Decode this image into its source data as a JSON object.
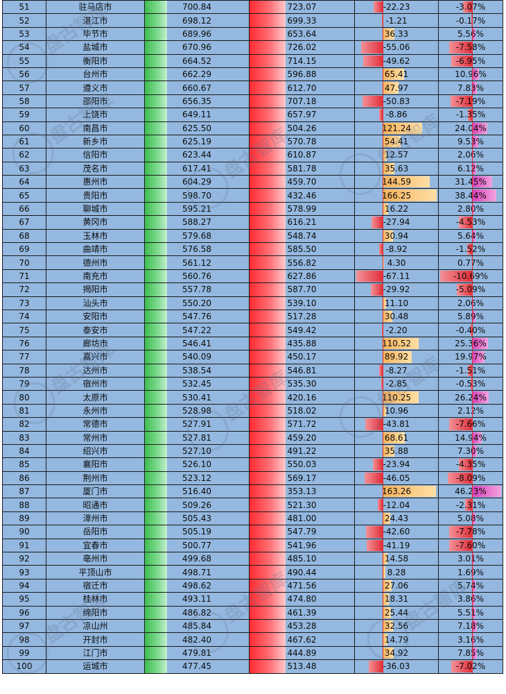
{
  "watermark": "盘古智库",
  "colors": {
    "cell_bg": "#94b8df",
    "gdp_bar": "#3fbe53",
    "prev_bar": "#ff2a32",
    "increase_positive": "#f6b15a",
    "growth_positive": "#d83fb6",
    "negative": "#e2303a"
  },
  "rows": [
    {
      "rank": "51",
      "city": "驻马店市",
      "gdp": "700.84",
      "prev": "723.07",
      "inc": "-22.23",
      "pct": "-3.07%"
    },
    {
      "rank": "52",
      "city": "湛江市",
      "gdp": "698.12",
      "prev": "699.33",
      "inc": "-1.21",
      "pct": "-0.17%"
    },
    {
      "rank": "53",
      "city": "毕节市",
      "gdp": "689.96",
      "prev": "653.64",
      "inc": "36.33",
      "pct": "5.56%"
    },
    {
      "rank": "54",
      "city": "盐城市",
      "gdp": "670.96",
      "prev": "726.02",
      "inc": "-55.06",
      "pct": "-7.58%"
    },
    {
      "rank": "55",
      "city": "衡阳市",
      "gdp": "664.52",
      "prev": "714.15",
      "inc": "-49.62",
      "pct": "-6.95%"
    },
    {
      "rank": "56",
      "city": "台州市",
      "gdp": "662.29",
      "prev": "596.88",
      "inc": "65.41",
      "pct": "10.96%"
    },
    {
      "rank": "57",
      "city": "遵义市",
      "gdp": "660.67",
      "prev": "612.70",
      "inc": "47.97",
      "pct": "7.83%"
    },
    {
      "rank": "58",
      "city": "邵阳市",
      "gdp": "656.35",
      "prev": "707.18",
      "inc": "-50.83",
      "pct": "-7.19%"
    },
    {
      "rank": "59",
      "city": "上饶市",
      "gdp": "649.11",
      "prev": "657.97",
      "inc": "-8.86",
      "pct": "-1.35%"
    },
    {
      "rank": "60",
      "city": "南昌市",
      "gdp": "625.50",
      "prev": "504.26",
      "inc": "121.24",
      "pct": "24.04%"
    },
    {
      "rank": "61",
      "city": "新乡市",
      "gdp": "625.19",
      "prev": "570.78",
      "inc": "54.41",
      "pct": "9.53%"
    },
    {
      "rank": "62",
      "city": "信阳市",
      "gdp": "623.44",
      "prev": "610.87",
      "inc": "12.57",
      "pct": "2.06%"
    },
    {
      "rank": "63",
      "city": "茂名市",
      "gdp": "617.41",
      "prev": "581.78",
      "inc": "35.63",
      "pct": "6.12%"
    },
    {
      "rank": "64",
      "city": "惠州市",
      "gdp": "604.29",
      "prev": "459.70",
      "inc": "144.59",
      "pct": "31.45%"
    },
    {
      "rank": "65",
      "city": "贵阳市",
      "gdp": "598.70",
      "prev": "432.46",
      "inc": "166.25",
      "pct": "38.44%"
    },
    {
      "rank": "66",
      "city": "聊城市",
      "gdp": "595.21",
      "prev": "578.99",
      "inc": "16.22",
      "pct": "2.80%"
    },
    {
      "rank": "67",
      "city": "黄冈市",
      "gdp": "588.27",
      "prev": "616.21",
      "inc": "-27.94",
      "pct": "-4.53%"
    },
    {
      "rank": "68",
      "city": "玉林市",
      "gdp": "579.68",
      "prev": "548.74",
      "inc": "30.94",
      "pct": "5.64%"
    },
    {
      "rank": "69",
      "city": "曲靖市",
      "gdp": "576.58",
      "prev": "585.50",
      "inc": "-8.92",
      "pct": "-1.52%"
    },
    {
      "rank": "70",
      "city": "德州市",
      "gdp": "561.12",
      "prev": "556.82",
      "inc": "4.30",
      "pct": "0.77%"
    },
    {
      "rank": "71",
      "city": "南充市",
      "gdp": "560.76",
      "prev": "627.86",
      "inc": "-67.11",
      "pct": "-10.69%"
    },
    {
      "rank": "72",
      "city": "揭阳市",
      "gdp": "557.78",
      "prev": "587.70",
      "inc": "-29.92",
      "pct": "-5.09%"
    },
    {
      "rank": "73",
      "city": "汕头市",
      "gdp": "550.20",
      "prev": "539.10",
      "inc": "11.10",
      "pct": "2.06%"
    },
    {
      "rank": "74",
      "city": "安阳市",
      "gdp": "547.76",
      "prev": "517.28",
      "inc": "30.48",
      "pct": "5.89%"
    },
    {
      "rank": "75",
      "city": "泰安市",
      "gdp": "547.22",
      "prev": "549.42",
      "inc": "-2.20",
      "pct": "-0.40%"
    },
    {
      "rank": "76",
      "city": "廊坊市",
      "gdp": "546.41",
      "prev": "435.88",
      "inc": "110.52",
      "pct": "25.36%"
    },
    {
      "rank": "77",
      "city": "嘉兴市",
      "gdp": "540.09",
      "prev": "450.17",
      "inc": "89.92",
      "pct": "19.97%"
    },
    {
      "rank": "78",
      "city": "达州市",
      "gdp": "538.54",
      "prev": "546.81",
      "inc": "-8.27",
      "pct": "-1.51%"
    },
    {
      "rank": "79",
      "city": "宿州市",
      "gdp": "532.45",
      "prev": "535.30",
      "inc": "-2.85",
      "pct": "-0.53%"
    },
    {
      "rank": "80",
      "city": "太原市",
      "gdp": "530.41",
      "prev": "420.16",
      "inc": "110.25",
      "pct": "26.24%"
    },
    {
      "rank": "81",
      "city": "永州市",
      "gdp": "528.98",
      "prev": "518.02",
      "inc": "10.96",
      "pct": "2.12%"
    },
    {
      "rank": "82",
      "city": "常德市",
      "gdp": "527.91",
      "prev": "571.72",
      "inc": "-43.81",
      "pct": "-7.66%"
    },
    {
      "rank": "83",
      "city": "常州市",
      "gdp": "527.81",
      "prev": "459.20",
      "inc": "68.61",
      "pct": "14.94%"
    },
    {
      "rank": "84",
      "city": "绍兴市",
      "gdp": "527.10",
      "prev": "491.22",
      "inc": "35.88",
      "pct": "7.30%"
    },
    {
      "rank": "85",
      "city": "襄阳市",
      "gdp": "526.10",
      "prev": "550.03",
      "inc": "-23.94",
      "pct": "-4.35%"
    },
    {
      "rank": "86",
      "city": "荆州市",
      "gdp": "523.12",
      "prev": "569.17",
      "inc": "-46.05",
      "pct": "-8.09%"
    },
    {
      "rank": "87",
      "city": "厦门市",
      "gdp": "516.40",
      "prev": "353.13",
      "inc": "163.26",
      "pct": "46.23%"
    },
    {
      "rank": "88",
      "city": "昭通市",
      "gdp": "509.26",
      "prev": "521.30",
      "inc": "-12.04",
      "pct": "-2.31%"
    },
    {
      "rank": "89",
      "city": "漳州市",
      "gdp": "505.43",
      "prev": "481.00",
      "inc": "24.43",
      "pct": "5.08%"
    },
    {
      "rank": "90",
      "city": "岳阳市",
      "gdp": "505.19",
      "prev": "547.79",
      "inc": "-42.60",
      "pct": "-7.78%"
    },
    {
      "rank": "91",
      "city": "宜春市",
      "gdp": "500.77",
      "prev": "541.96",
      "inc": "-41.19",
      "pct": "-7.60%"
    },
    {
      "rank": "92",
      "city": "亳州市",
      "gdp": "499.68",
      "prev": "485.10",
      "inc": "14.58",
      "pct": "3.01%"
    },
    {
      "rank": "93",
      "city": "平顶山市",
      "gdp": "498.71",
      "prev": "490.44",
      "inc": "8.28",
      "pct": "1.69%"
    },
    {
      "rank": "94",
      "city": "宿迁市",
      "gdp": "498.62",
      "prev": "471.56",
      "inc": "27.06",
      "pct": "5.74%"
    },
    {
      "rank": "95",
      "city": "桂林市",
      "gdp": "493.11",
      "prev": "474.80",
      "inc": "18.31",
      "pct": "3.86%"
    },
    {
      "rank": "96",
      "city": "绵阳市",
      "gdp": "486.82",
      "prev": "461.39",
      "inc": "25.44",
      "pct": "5.51%"
    },
    {
      "rank": "97",
      "city": "凉山州",
      "gdp": "485.84",
      "prev": "453.28",
      "inc": "32.56",
      "pct": "7.18%"
    },
    {
      "rank": "98",
      "city": "开封市",
      "gdp": "482.40",
      "prev": "467.62",
      "inc": "14.79",
      "pct": "3.16%"
    },
    {
      "rank": "99",
      "city": "江门市",
      "gdp": "479.81",
      "prev": "444.89",
      "inc": "34.92",
      "pct": "7.85%"
    },
    {
      "rank": "100",
      "city": "运城市",
      "gdp": "477.45",
      "prev": "513.48",
      "inc": "-36.03",
      "pct": "-7.02%"
    }
  ]
}
